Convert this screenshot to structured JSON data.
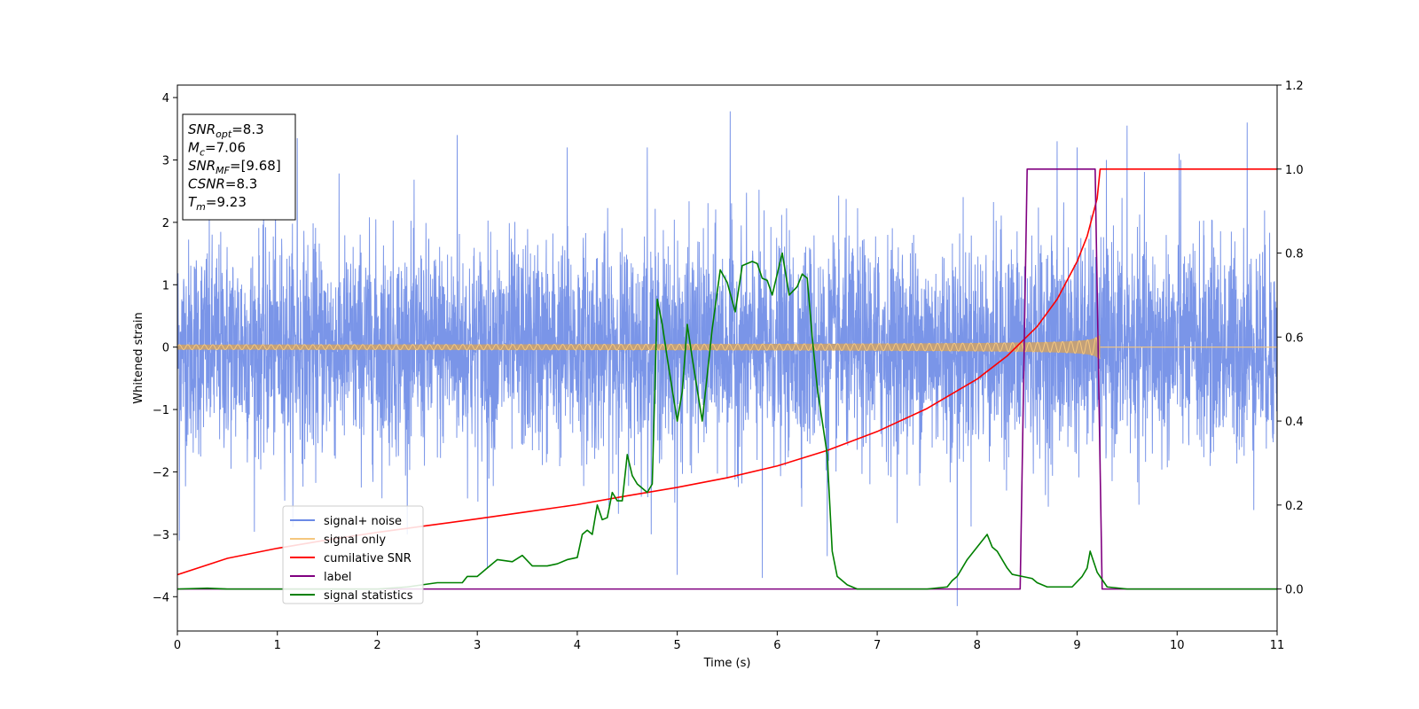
{
  "chart_data": {
    "type": "line",
    "xlabel": "Time (s)",
    "ylabel": "Whitened strain",
    "xlim": [
      0,
      11
    ],
    "ylim": [
      -4.55,
      4.2
    ],
    "y2lim": [
      -0.1,
      1.2
    ],
    "x_ticks": [
      "0",
      "1",
      "2",
      "3",
      "4",
      "5",
      "6",
      "7",
      "8",
      "9",
      "10",
      "11"
    ],
    "y_ticks": [
      "−4",
      "−3",
      "−2",
      "−1",
      "0",
      "1",
      "2",
      "3",
      "4"
    ],
    "y2_ticks": [
      "0.0",
      "0.2",
      "0.4",
      "0.6",
      "0.8",
      "1.0",
      "1.2"
    ],
    "legend_position": "lower-left",
    "grid": false,
    "annotations": [
      {
        "sym": "SNR",
        "sub": "opt",
        "value": "=8.3"
      },
      {
        "sym": "M",
        "sub": "c",
        "value": "=7.06"
      },
      {
        "sym": "SNR",
        "sub": "MF",
        "value": "=[9.68]"
      },
      {
        "sym": "CSNR",
        "sub": "",
        "value": "=8.3"
      },
      {
        "sym": "T",
        "sub": "m",
        "value": "=9.23"
      }
    ],
    "series": [
      {
        "name": "signal+ noise",
        "axis": "left",
        "color": "#6b8ae6",
        "style": "noise",
        "noise_sigma": 0.85,
        "peaks": [
          [
            0.02,
            -3.1
          ],
          [
            1.2,
            3.35
          ],
          [
            2.8,
            3.4
          ],
          [
            3.1,
            3.4
          ],
          [
            3.1,
            -3.55
          ],
          [
            3.9,
            3.2
          ],
          [
            4.7,
            3.2
          ],
          [
            5.0,
            -3.65
          ],
          [
            5.53,
            3.78
          ],
          [
            5.85,
            -3.7
          ],
          [
            6.5,
            -3.35
          ],
          [
            7.8,
            -4.15
          ],
          [
            8.8,
            3.3
          ],
          [
            9.5,
            3.55
          ],
          [
            10.7,
            3.6
          ],
          [
            9.0,
            3.2
          ],
          [
            10.02,
            3.1
          ]
        ]
      },
      {
        "name": "signal only",
        "axis": "left",
        "color": "#f5c77e",
        "style": "chirp",
        "merge_time": 9.23,
        "amplitude_start": 0.04,
        "amplitude_merge": 0.55
      },
      {
        "name": "cumilative SNR",
        "axis": "right",
        "color": "#ff0000",
        "x": [
          0,
          0.5,
          1,
          1.5,
          2,
          2.5,
          3,
          3.5,
          4,
          4.5,
          5,
          5.5,
          6,
          6.5,
          7,
          7.5,
          8,
          8.3,
          8.6,
          8.8,
          9.0,
          9.1,
          9.2,
          9.23,
          11
        ],
        "y": [
          0.034,
          0.073,
          0.097,
          0.117,
          0.135,
          0.151,
          0.167,
          0.184,
          0.201,
          0.222,
          0.242,
          0.265,
          0.293,
          0.33,
          0.375,
          0.43,
          0.5,
          0.555,
          0.625,
          0.69,
          0.78,
          0.84,
          0.93,
          1.0,
          1.0
        ]
      },
      {
        "name": "label",
        "axis": "right",
        "color": "#800080",
        "x": [
          0,
          8.43,
          8.5,
          9.18,
          9.25,
          11
        ],
        "y": [
          0.0,
          0.0,
          1.0,
          1.0,
          0.0,
          0.0
        ]
      },
      {
        "name": "signal statistics",
        "axis": "right",
        "color": "#008000",
        "x": [
          0,
          0.3,
          0.5,
          1.0,
          1.5,
          2.0,
          2.3,
          2.6,
          2.85,
          2.9,
          3.0,
          3.1,
          3.2,
          3.35,
          3.45,
          3.55,
          3.65,
          3.7,
          3.8,
          3.9,
          4.0,
          4.05,
          4.1,
          4.15,
          4.2,
          4.25,
          4.3,
          4.35,
          4.4,
          4.45,
          4.5,
          4.55,
          4.6,
          4.65,
          4.7,
          4.75,
          4.8,
          4.85,
          4.9,
          5.0,
          5.05,
          5.1,
          5.15,
          5.25,
          5.35,
          5.43,
          5.5,
          5.58,
          5.65,
          5.7,
          5.75,
          5.8,
          5.85,
          5.9,
          5.95,
          6.05,
          6.12,
          6.2,
          6.25,
          6.3,
          6.35,
          6.4,
          6.45,
          6.5,
          6.55,
          6.6,
          6.7,
          6.8,
          7.0,
          7.5,
          7.7,
          7.75,
          7.8,
          7.85,
          7.9,
          8.0,
          8.1,
          8.15,
          8.2,
          8.3,
          8.35,
          8.45,
          8.55,
          8.6,
          8.7,
          8.8,
          8.95,
          9.05,
          9.1,
          9.13,
          9.2,
          9.3,
          9.5,
          11
        ],
        "y": [
          0.0,
          0.002,
          0.0,
          0.0,
          0.0,
          0.0,
          0.005,
          0.015,
          0.015,
          0.03,
          0.03,
          0.05,
          0.07,
          0.065,
          0.08,
          0.055,
          0.055,
          0.055,
          0.06,
          0.07,
          0.075,
          0.13,
          0.14,
          0.13,
          0.2,
          0.165,
          0.17,
          0.23,
          0.21,
          0.21,
          0.32,
          0.27,
          0.25,
          0.24,
          0.23,
          0.25,
          0.69,
          0.63,
          0.55,
          0.4,
          0.47,
          0.63,
          0.55,
          0.4,
          0.62,
          0.76,
          0.73,
          0.66,
          0.77,
          0.775,
          0.78,
          0.775,
          0.74,
          0.735,
          0.7,
          0.8,
          0.7,
          0.72,
          0.75,
          0.74,
          0.6,
          0.48,
          0.4,
          0.32,
          0.09,
          0.03,
          0.01,
          0.0,
          0.0,
          0.0,
          0.005,
          0.02,
          0.03,
          0.05,
          0.07,
          0.1,
          0.13,
          0.1,
          0.09,
          0.05,
          0.035,
          0.03,
          0.025,
          0.015,
          0.005,
          0.005,
          0.005,
          0.03,
          0.05,
          0.09,
          0.04,
          0.005,
          0.0,
          0.0
        ]
      }
    ]
  }
}
